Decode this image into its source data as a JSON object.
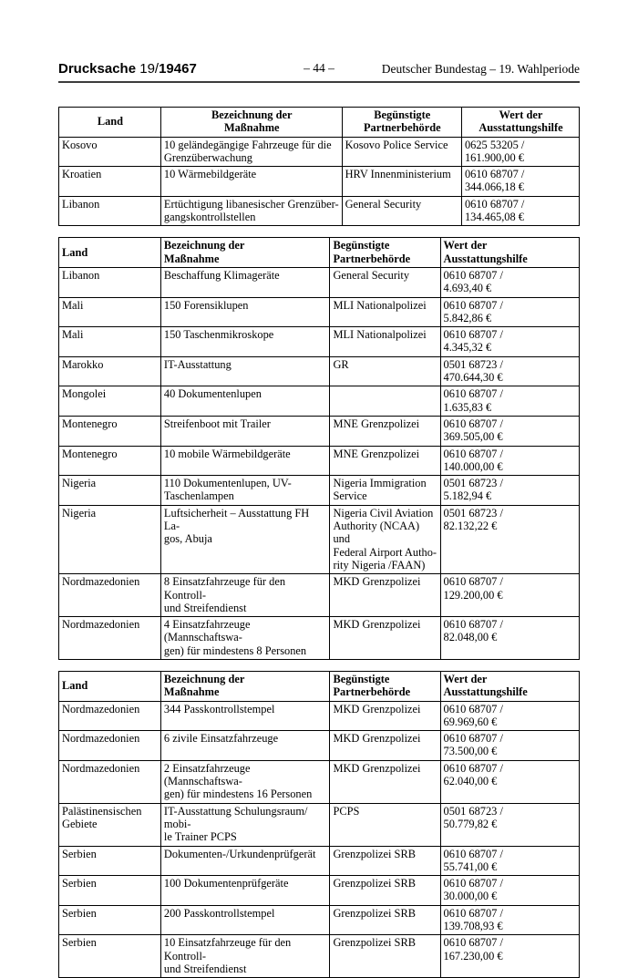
{
  "page_header": {
    "doc_label": "Drucksache",
    "doc_number_prefix": "19/",
    "doc_number_bold": "19467",
    "page_number": "– 44 –",
    "right_text": "Deutscher Bundestag – 19. Wahlperiode"
  },
  "columns": {
    "land": "Land",
    "massnahme": "Bezeichnung der\nMaßnahme",
    "partner": "Begünstigte\nPartnerbehörde",
    "wert": "Wert der\nAusstattungshilfe"
  },
  "tables": [
    {
      "rows": [
        {
          "land": "Kosovo",
          "massnahme": "10 geländegängige Fahrzeuge für die\nGrenzüberwachung",
          "partner": "Kosovo Police Service",
          "wert": "0625 53205 /\n161.900,00 €"
        },
        {
          "land": "Kroatien",
          "massnahme": "10 Wärmebildgeräte",
          "partner": "HRV Innenministerium",
          "wert": "0610 68707 /\n344.066,18 €"
        },
        {
          "land": "Libanon",
          "massnahme": "Ertüchtigung libanesischer Grenzüber-\ngangskontrollstellen",
          "partner": "General Security",
          "wert": "0610 68707 /\n134.465,08 €"
        }
      ]
    },
    {
      "rows": [
        {
          "land": "Libanon",
          "massnahme": "Beschaffung Klimageräte",
          "partner": "General Security",
          "wert": "0610 68707 /\n4.693,40 €"
        },
        {
          "land": "Mali",
          "massnahme": "150 Forensiklupen",
          "partner": "MLI Nationalpolizei",
          "wert": "0610 68707 /\n5.842,86 €"
        },
        {
          "land": "Mali",
          "massnahme": "150 Taschenmikroskope",
          "partner": "MLI Nationalpolizei",
          "wert": "0610 68707 /\n4.345,32 €"
        },
        {
          "land": "Marokko",
          "massnahme": "IT-Ausstattung",
          "partner": "GR",
          "wert": "0501 68723 /\n470.644,30 €"
        },
        {
          "land": "Mongolei",
          "massnahme": "40 Dokumentenlupen",
          "partner": "",
          "wert": "0610 68707 /\n1.635,83 €"
        },
        {
          "land": "Montenegro",
          "massnahme": "Streifenboot mit Trailer",
          "partner": "MNE Grenzpolizei",
          "wert": "0610 68707 /\n369.505,00 €"
        },
        {
          "land": "Montenegro",
          "massnahme": "10 mobile Wärmebildgeräte",
          "partner": "MNE Grenzpolizei",
          "wert": "0610 68707 /\n140.000,00 €"
        },
        {
          "land": "Nigeria",
          "massnahme": "110 Dokumentenlupen, UV-\nTaschenlampen",
          "partner": "Nigeria Immigration\nService",
          "wert": "0501 68723 /\n5.182,94 €"
        },
        {
          "land": "Nigeria",
          "massnahme": "Luftsicherheit – Ausstattung FH La-\ngos, Abuja",
          "partner": "Nigeria Civil Aviation\nAuthority (NCAA) und\nFederal Airport Autho-\nrity Nigeria /FAAN)",
          "wert": "0501 68723 /\n82.132,22 €"
        },
        {
          "land": "Nordmazedonien",
          "massnahme": "8 Einsatzfahrzeuge für den Kontroll-\nund Streifendienst",
          "partner": "MKD Grenzpolizei",
          "wert": "0610 68707 /\n129.200,00 €"
        },
        {
          "land": "Nordmazedonien",
          "massnahme": "4 Einsatzfahrzeuge (Mannschaftswa-\ngen) für mindestens 8 Personen",
          "partner": "MKD Grenzpolizei",
          "wert": "0610 68707 /\n82.048,00 €"
        }
      ]
    },
    {
      "rows": [
        {
          "land": "Nordmazedonien",
          "massnahme": "344 Passkontrollstempel",
          "partner": "MKD Grenzpolizei",
          "wert": "0610 68707 /\n69.969,60 €"
        },
        {
          "land": "Nordmazedonien",
          "massnahme": "6 zivile Einsatzfahrzeuge",
          "partner": "MKD Grenzpolizei",
          "wert": "0610 68707 /\n73.500,00 €"
        },
        {
          "land": "Nordmazedonien",
          "massnahme": "2 Einsatzfahrzeuge (Mannschaftswa-\ngen) für mindestens 16 Personen",
          "partner": "MKD Grenzpolizei",
          "wert": "0610 68707 /\n62.040,00 €"
        },
        {
          "land": "Palästinensischen\nGebiete",
          "massnahme": "IT-Ausstattung Schulungsraum/ mobi-\nle Trainer PCPS",
          "partner": "PCPS",
          "wert": "0501 68723 /\n50.779,82 €"
        },
        {
          "land": "Serbien",
          "massnahme": "Dokumenten-/Urkundenprüfgerät",
          "partner": "Grenzpolizei SRB",
          "wert": "0610 68707 /\n55.741,00 €"
        },
        {
          "land": "Serbien",
          "massnahme": "100 Dokumentenprüfgeräte",
          "partner": "Grenzpolizei SRB",
          "wert": "0610 68707 /\n30.000,00 €"
        },
        {
          "land": "Serbien",
          "massnahme": "200 Passkontrollstempel",
          "partner": "Grenzpolizei SRB",
          "wert": "0610 68707 /\n139.708,93 €"
        },
        {
          "land": "Serbien",
          "massnahme": "10 Einsatzfahrzeuge für den Kontroll-\nund Streifendienst",
          "partner": "Grenzpolizei SRB",
          "wert": "0610 68707 /\n167.230,00 €"
        }
      ]
    }
  ]
}
